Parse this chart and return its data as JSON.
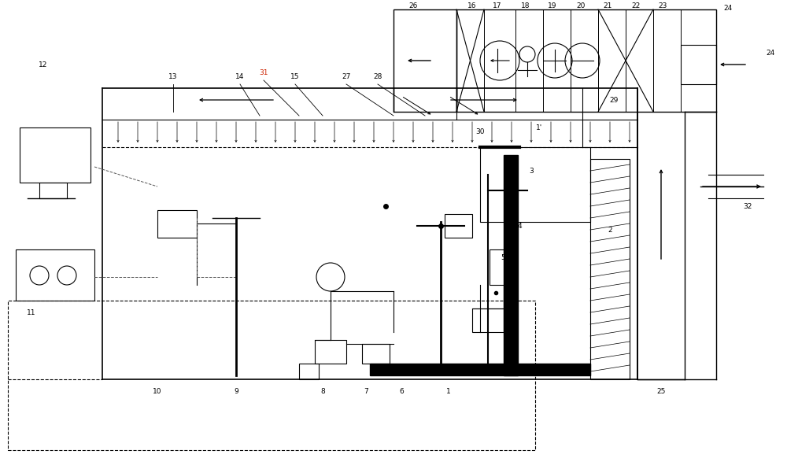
{
  "bg_color": "#ffffff",
  "fig_width": 10.0,
  "fig_height": 5.82,
  "dpi": 100
}
